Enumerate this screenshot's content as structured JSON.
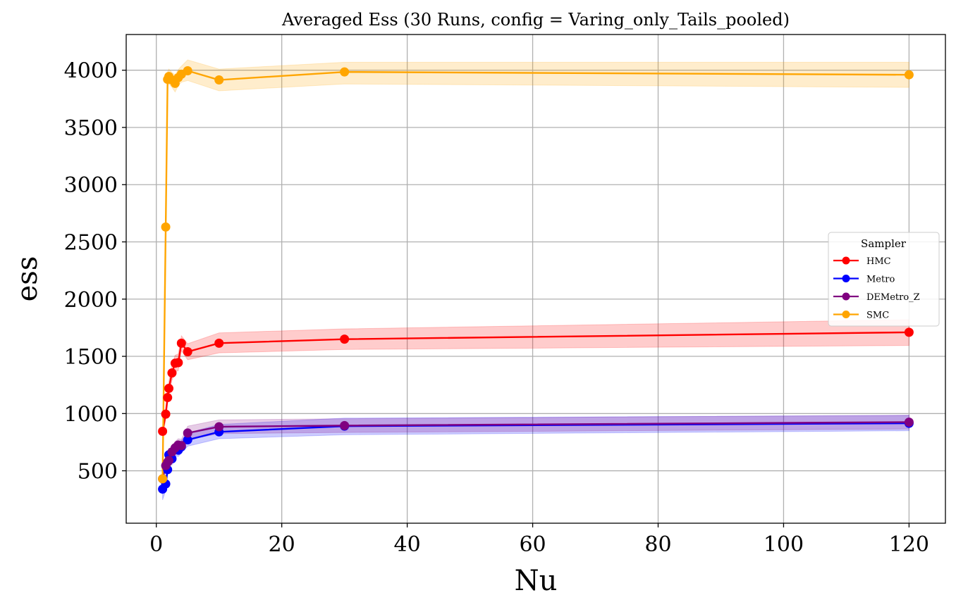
{
  "chart_data": {
    "type": "line",
    "title": "Averaged Ess (30 Runs, config = Varing_only_Tails_pooled)",
    "xlabel": "Nu",
    "ylabel": "ess",
    "xlim": [
      -4.8,
      125.8
    ],
    "ylim": [
      42,
      4312
    ],
    "xticks": [
      0,
      20,
      40,
      60,
      80,
      100,
      120
    ],
    "xtick_labels": [
      "0",
      "20",
      "40",
      "60",
      "80",
      "100",
      "120"
    ],
    "yticks": [
      500,
      1000,
      1500,
      2000,
      2500,
      3000,
      3500,
      4000
    ],
    "ytick_labels": [
      "500",
      "1000",
      "1500",
      "2000",
      "2500",
      "3000",
      "3500",
      "4000"
    ],
    "grid": true,
    "legend": {
      "title": "Sampler",
      "placement": "center-right"
    },
    "series": [
      {
        "name": "HMC",
        "color": "#ff0000",
        "x": [
          1,
          1.5,
          1.8,
          2,
          2.5,
          3,
          3.5,
          4,
          5,
          10,
          30,
          120
        ],
        "y": [
          845,
          995,
          1140,
          1220,
          1355,
          1440,
          1445,
          1615,
          1540,
          1615,
          1650,
          1710
        ],
        "band_lower": [
          800,
          945,
          1085,
          1160,
          1290,
          1365,
          1375,
          1550,
          1470,
          1530,
          1560,
          1595
        ],
        "band_upper": [
          895,
          1050,
          1195,
          1280,
          1420,
          1510,
          1520,
          1680,
          1610,
          1705,
          1740,
          1820
        ]
      },
      {
        "name": "Metro",
        "color": "#0000ff",
        "x": [
          1,
          1.5,
          1.8,
          2,
          2.5,
          3,
          3.5,
          4,
          5,
          10,
          30,
          120
        ],
        "y": [
          340,
          385,
          510,
          640,
          605,
          685,
          680,
          710,
          770,
          840,
          890,
          915
        ],
        "band_lower": [
          245,
          330,
          455,
          585,
          550,
          630,
          625,
          655,
          715,
          780,
          815,
          850
        ],
        "band_upper": [
          420,
          440,
          565,
          695,
          660,
          740,
          735,
          765,
          830,
          905,
          960,
          985
        ]
      },
      {
        "name": "DEMetro_Z",
        "color": "#800080",
        "x": [
          1,
          1.5,
          1.8,
          2,
          2.5,
          3,
          3.5,
          4,
          5,
          10,
          30,
          120
        ],
        "y": [
          430,
          545,
          575,
          590,
          665,
          700,
          725,
          720,
          830,
          885,
          895,
          925
        ],
        "band_lower": [
          370,
          490,
          520,
          535,
          610,
          645,
          670,
          665,
          770,
          825,
          835,
          865
        ],
        "band_upper": [
          490,
          600,
          630,
          645,
          720,
          755,
          780,
          775,
          890,
          945,
          955,
          985
        ]
      },
      {
        "name": "SMC",
        "color": "#ffa500",
        "x": [
          1,
          1.5,
          1.8,
          2,
          2.5,
          3,
          3.5,
          4,
          5,
          10,
          30,
          120
        ],
        "y": [
          430,
          2630,
          3920,
          3945,
          3915,
          3885,
          3935,
          3965,
          3995,
          3915,
          3985,
          3960
        ],
        "band_lower": [
          380,
          2570,
          3860,
          3880,
          3850,
          3810,
          3865,
          3895,
          3910,
          3820,
          3880,
          3850
        ],
        "band_upper": [
          480,
          2690,
          3985,
          4010,
          3980,
          3960,
          4005,
          4035,
          4090,
          4010,
          4070,
          4070
        ]
      }
    ]
  }
}
